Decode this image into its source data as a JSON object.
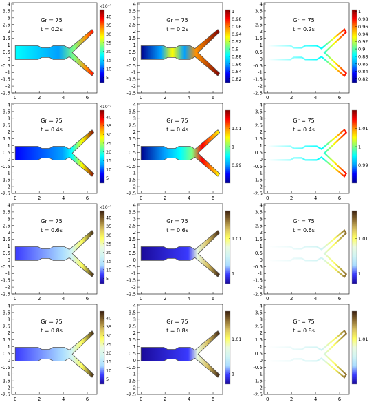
{
  "figure": {
    "colors": {
      "jet": [
        "#00008f",
        "#0000ff",
        "#00a0ff",
        "#00ffff",
        "#80ff80",
        "#ffff00",
        "#ff9000",
        "#ff0000",
        "#800000"
      ],
      "pastel": [
        "#1a0a9a",
        "#3a3aff",
        "#aadcff",
        "#d0f4f4",
        "#eafae0",
        "#ffff60",
        "#d8c060",
        "#8a6a30",
        "#3a2010"
      ],
      "outline": "#555555",
      "axis": "#000000"
    }
  },
  "chart_data": [
    {
      "type": "heatmap",
      "field": "left",
      "annotation": [
        "Gr = 75",
        "t = 0.2s"
      ],
      "colormap": "jet",
      "xticks": [
        "0",
        "2",
        "4",
        "6"
      ],
      "yticks": [
        "4",
        "3.5",
        "3",
        "2.5",
        "2",
        "1.5",
        "1",
        "0.5",
        "0",
        "-0.5",
        "-1",
        "-1.5",
        "-2",
        "-2.5"
      ],
      "xlim": [
        -0.3,
        6.8
      ],
      "ylim": [
        -2.5,
        4.1
      ],
      "colorbar": {
        "exponent": "×10⁻³",
        "ticks": [
          "40",
          "35",
          "30",
          "25",
          "20",
          "15",
          "10",
          "5"
        ],
        "range": [
          2,
          44
        ]
      }
    },
    {
      "type": "heatmap",
      "field": "middle",
      "annotation": [
        "Gr = 75",
        "t = 0.2s"
      ],
      "colormap": "jet",
      "xticks": [
        "0",
        "2",
        "4",
        "6"
      ],
      "yticks": [
        "4",
        "3.5",
        "3",
        "2.5",
        "2",
        "1.5",
        "1",
        "0.5",
        "0",
        "-0.5",
        "-1",
        "-1.5",
        "-2",
        "-2.5"
      ],
      "xlim": [
        -0.3,
        6.8
      ],
      "ylim": [
        -2.5,
        4.1
      ],
      "colorbar": {
        "exponent": "",
        "ticks": [
          "1",
          "0.98",
          "0.96",
          "0.94",
          "0.92",
          "0.9",
          "0.88",
          "0.86",
          "0.84",
          "0.82"
        ],
        "range": [
          0.81,
          1.005
        ]
      }
    },
    {
      "type": "contour",
      "field": "right",
      "annotation": [
        "Gr = 75",
        "t = 0.2s"
      ],
      "colormap": "jet",
      "xticks": [
        "0",
        "2",
        "4",
        "6"
      ],
      "yticks": [
        "4",
        "3.5",
        "3",
        "2.5",
        "2",
        "1.5",
        "1",
        "0.5",
        "0",
        "-0.5",
        "-1",
        "-1.5",
        "-2",
        "-2.5"
      ],
      "xlim": [
        -0.3,
        6.8
      ],
      "ylim": [
        -2.5,
        4.1
      ],
      "colorbar": {
        "exponent": "",
        "ticks": [
          "1",
          "0.98",
          "0.96",
          "0.94",
          "0.92",
          "0.9",
          "0.88",
          "0.86",
          "0.84",
          "0.82"
        ],
        "range": [
          0.81,
          1.005
        ]
      }
    },
    {
      "type": "heatmap",
      "field": "left",
      "annotation": [
        "Gr = 75",
        "t = 0.4s"
      ],
      "colormap": "jet",
      "xticks": [
        "0",
        "2",
        "4",
        "6"
      ],
      "yticks": [
        "4",
        "3.5",
        "3",
        "2.5",
        "2",
        "1.5",
        "1",
        "0.5",
        "0",
        "-0.5",
        "-1",
        "-1.5",
        "-2",
        "-2.5"
      ],
      "xlim": [
        -0.3,
        6.8
      ],
      "ylim": [
        -2.5,
        4.1
      ],
      "colorbar": {
        "exponent": "×10⁻³",
        "ticks": [
          "40",
          "35",
          "30",
          "25",
          "20",
          "15",
          "10",
          "5"
        ],
        "range": [
          2,
          44
        ]
      }
    },
    {
      "type": "heatmap",
      "field": "middle",
      "annotation": [
        "Gr = 75",
        "t = 0.4s"
      ],
      "colormap": "jet",
      "xticks": [
        "0",
        "2",
        "4",
        "6"
      ],
      "yticks": [
        "4",
        "3.5",
        "3",
        "2.5",
        "2",
        "1.5",
        "1",
        "0.5",
        "0",
        "-0.5",
        "-1",
        "-1.5",
        "-2",
        "-2.5"
      ],
      "xlim": [
        -0.3,
        6.8
      ],
      "ylim": [
        -2.5,
        4.1
      ],
      "colorbar": {
        "exponent": "",
        "ticks": [
          "1.01",
          "1",
          "0.99"
        ],
        "range": [
          0.98,
          1.02
        ]
      }
    },
    {
      "type": "contour",
      "field": "right",
      "annotation": [
        "Gr = 75",
        "t = 0.4s"
      ],
      "colormap": "jet",
      "xticks": [
        "0",
        "2",
        "4",
        "6"
      ],
      "yticks": [
        "4",
        "3.5",
        "3",
        "2.5",
        "2",
        "1.5",
        "1",
        "0.5",
        "0",
        "-0.5",
        "-1",
        "-1.5",
        "-2",
        "-2.5"
      ],
      "xlim": [
        -0.3,
        6.8
      ],
      "ylim": [
        -2.5,
        4.1
      ],
      "colorbar": {
        "exponent": "",
        "ticks": [
          "1.01",
          "1",
          "0.99"
        ],
        "range": [
          0.98,
          1.02
        ]
      }
    },
    {
      "type": "heatmap",
      "field": "left",
      "annotation": [
        "Gr = 75",
        "t = 0.6s"
      ],
      "colormap": "pastel",
      "xticks": [
        "0",
        "2",
        "4",
        "6"
      ],
      "yticks": [
        "4",
        "3.5",
        "3",
        "2.5",
        "2",
        "1.5",
        "1",
        "0.5",
        "0",
        "-0.5",
        "-1",
        "-1.5",
        "-2",
        "-2.5"
      ],
      "xlim": [
        -0.3,
        6.8
      ],
      "ylim": [
        -2.5,
        4.1
      ],
      "colorbar": {
        "exponent": "×10⁻³",
        "ticks": [
          "40",
          "35",
          "30",
          "25",
          "20",
          "15",
          "10",
          "5"
        ],
        "range": [
          2,
          44
        ]
      }
    },
    {
      "type": "heatmap",
      "field": "middle",
      "annotation": [
        "Gr = 75",
        "t = 0.6s"
      ],
      "colormap": "pastel",
      "xticks": [
        "0",
        "2",
        "4",
        "6"
      ],
      "yticks": [
        "4",
        "3.5",
        "3",
        "2.5",
        "2",
        "1.5",
        "1",
        "0.5",
        "0",
        "-0.5",
        "-1",
        "-1.5",
        "-2",
        "-2.5"
      ],
      "xlim": [
        -0.3,
        6.8
      ],
      "ylim": [
        -2.5,
        4.1
      ],
      "colorbar": {
        "exponent": "",
        "ticks": [
          "1.01",
          "1"
        ],
        "range": [
          0.997,
          1.018
        ]
      }
    },
    {
      "type": "contour",
      "field": "right",
      "annotation": [
        "Gr = 75",
        "t = 0.6s"
      ],
      "colormap": "pastel",
      "xticks": [
        "0",
        "2",
        "4",
        "6"
      ],
      "yticks": [
        "4",
        "3.5",
        "3",
        "2.5",
        "2",
        "1.5",
        "1",
        "0.5",
        "0",
        "-0.5",
        "-1",
        "-1.5",
        "-2",
        "-2.5"
      ],
      "xlim": [
        -0.3,
        6.8
      ],
      "ylim": [
        -2.5,
        4.1
      ],
      "colorbar": {
        "exponent": "",
        "ticks": [
          "1.01",
          "1"
        ],
        "range": [
          0.997,
          1.018
        ]
      }
    },
    {
      "type": "heatmap",
      "field": "left",
      "annotation": [
        "Gr = 75",
        "t = 0.8s"
      ],
      "colormap": "pastel",
      "xticks": [
        "0",
        "2",
        "4",
        "6"
      ],
      "yticks": [
        "4",
        "3.5",
        "3",
        "2.5",
        "2",
        "1.5",
        "1",
        "0.5",
        "0",
        "-0.5",
        "-1",
        "-1.5",
        "-2",
        "-2.5"
      ],
      "xlim": [
        -0.3,
        6.8
      ],
      "ylim": [
        -2.5,
        4.1
      ],
      "colorbar": {
        "exponent": "",
        "ticks": [
          "40",
          "35",
          "30",
          "25",
          "20",
          "15",
          "10",
          "5"
        ],
        "range": [
          2,
          44
        ]
      }
    },
    {
      "type": "heatmap",
      "field": "middle",
      "annotation": [
        "Gr = 75",
        "t = 0.8s"
      ],
      "colormap": "pastel",
      "xticks": [
        "0",
        "2",
        "4",
        "6"
      ],
      "yticks": [
        "4",
        "3.5",
        "3",
        "2.5",
        "2",
        "1.5",
        "1",
        "0.5",
        "0",
        "-0.5",
        "-1",
        "-1.5",
        "-2",
        "-2.5"
      ],
      "xlim": [
        -0.3,
        6.8
      ],
      "ylim": [
        -2.5,
        4.1
      ],
      "colorbar": {
        "exponent": "",
        "ticks": [
          "1.01",
          "1"
        ],
        "range": [
          0.997,
          1.018
        ]
      }
    },
    {
      "type": "contour",
      "field": "right",
      "annotation": [
        "Gr = 75",
        "t = 0.8s"
      ],
      "colormap": "pastel",
      "xticks": [
        "0",
        "2",
        "4",
        "6"
      ],
      "yticks": [
        "4",
        "3.5",
        "3",
        "2.5",
        "2",
        "1.5",
        "1",
        "0.5",
        "0",
        "-0.5",
        "-1",
        "-1.5",
        "-2",
        "-2.5"
      ],
      "xlim": [
        -0.3,
        6.8
      ],
      "ylim": [
        -2.5,
        4.1
      ],
      "colorbar": {
        "exponent": "",
        "ticks": [
          "1.01"
        ],
        "range": [
          0.997,
          1.018
        ]
      }
    }
  ]
}
